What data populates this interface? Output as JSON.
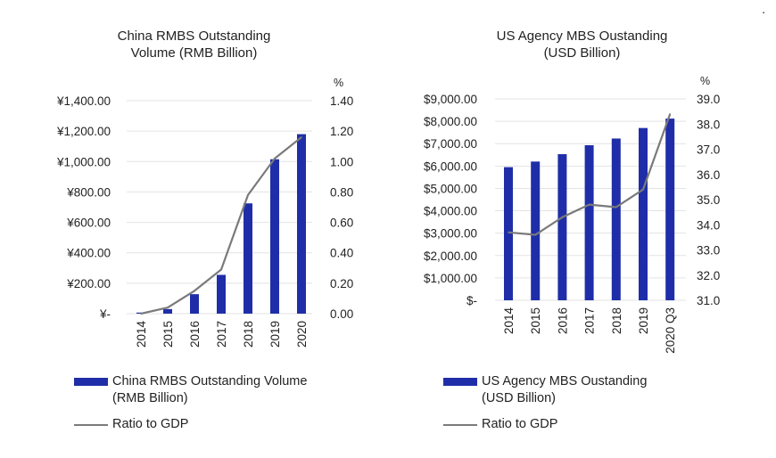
{
  "chart_data": [
    {
      "type": "bar",
      "title": "China RMBS Outstanding Volume (RMB Billion)",
      "title_lines": [
        "China RMBS Outstanding",
        "Volume (RMB Billion)"
      ],
      "categories": [
        "2014",
        "2015",
        "2016",
        "2017",
        "2018",
        "2019",
        "2020"
      ],
      "series": [
        {
          "name": "China RMBS Outstanding Volume (RMB Billion)",
          "kind": "bar",
          "axis": "left",
          "values": [
            7,
            30,
            128,
            255,
            725,
            1015,
            1180
          ]
        },
        {
          "name": "Ratio to GDP",
          "kind": "line",
          "axis": "right",
          "values": [
            0.0,
            0.04,
            0.15,
            0.29,
            0.78,
            1.02,
            1.16
          ]
        }
      ],
      "legend_lines": [
        [
          "China RMBS Outstanding Volume",
          "(RMB Billion)"
        ],
        [
          "Ratio to GDP"
        ]
      ],
      "y_left": {
        "lim": [
          0,
          1400
        ],
        "ticks": [
          0,
          200,
          400,
          600,
          800,
          1000,
          1200,
          1400
        ],
        "tick_labels": [
          "¥-",
          "¥200.00",
          "¥400.00",
          "¥600.00",
          "¥800.00",
          "¥1,000.00",
          "¥1,200.00",
          "¥1,400.00"
        ]
      },
      "y_right": {
        "lim": [
          0,
          1.4
        ],
        "unit": "%",
        "ticks": [
          0,
          0.2,
          0.4,
          0.6,
          0.8,
          1.0,
          1.2,
          1.4
        ],
        "tick_labels": [
          "0.00",
          "0.20",
          "0.40",
          "0.60",
          "0.80",
          "1.00",
          "1.20",
          "1.40"
        ]
      },
      "grid": true,
      "legend_position": "bottom",
      "colors": {
        "bar": "#1f2ea8",
        "line": "#7a7a7a",
        "grid": "#e3e3e3"
      }
    },
    {
      "type": "bar",
      "title": "US Agency MBS Oustanding (USD Billion)",
      "title_lines": [
        "US Agency MBS Oustanding",
        "(USD Billion)"
      ],
      "categories": [
        "2014",
        "2015",
        "2016",
        "2017",
        "2018",
        "2019",
        "2020 Q3"
      ],
      "series": [
        {
          "name": "US Agency MBS Oustanding (USD Billion)",
          "kind": "bar",
          "axis": "left",
          "values": [
            5950,
            6200,
            6530,
            6930,
            7230,
            7700,
            8120
          ]
        },
        {
          "name": "Ratio to GDP",
          "kind": "line",
          "axis": "right",
          "values": [
            33.7,
            33.6,
            34.3,
            34.8,
            34.7,
            35.4,
            38.4
          ]
        }
      ],
      "legend_lines": [
        [
          "US Agency MBS Oustanding",
          "(USD Billion)"
        ],
        [
          "Ratio to GDP"
        ]
      ],
      "y_left": {
        "lim": [
          0,
          9000
        ],
        "ticks": [
          0,
          1000,
          2000,
          3000,
          4000,
          5000,
          6000,
          7000,
          8000,
          9000
        ],
        "tick_labels": [
          "$-",
          "$1,000.00",
          "$2,000.00",
          "$3,000.00",
          "$4,000.00",
          "$5,000.00",
          "$6,000.00",
          "$7,000.00",
          "$8,000.00",
          "$9,000.00"
        ]
      },
      "y_right": {
        "lim": [
          31.0,
          39.0
        ],
        "unit": "%",
        "ticks": [
          31,
          32,
          33,
          34,
          35,
          36,
          37,
          38,
          39
        ],
        "tick_labels": [
          "31.0",
          "32.0",
          "33.0",
          "34.0",
          "35.0",
          "36.0",
          "37.0",
          "38.0",
          "39.0"
        ]
      },
      "grid": true,
      "legend_position": "bottom",
      "colors": {
        "bar": "#1f2ea8",
        "line": "#7a7a7a",
        "grid": "#e3e3e3"
      }
    }
  ],
  "corner_mark": "."
}
